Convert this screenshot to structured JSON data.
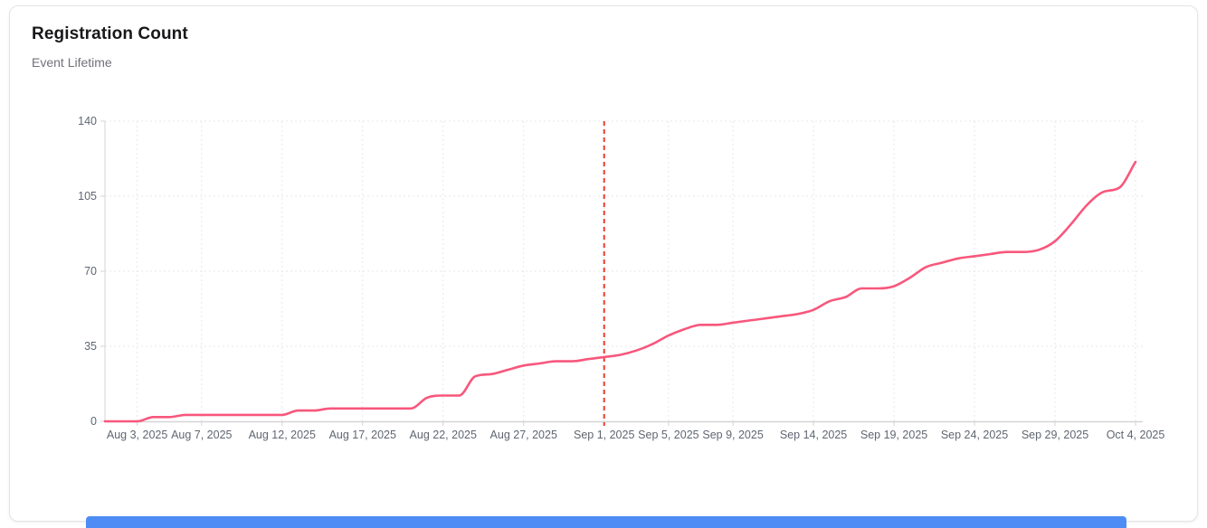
{
  "card": {
    "title": "Registration Count",
    "subtitle": "Event Lifetime"
  },
  "colors": {
    "line": "#f8577c",
    "reference_line": "#ee3b2e",
    "axis": "#d4d4d8",
    "grid": "#e7e7ee",
    "tick_label": "#5f6672",
    "scrollbar": "#4e8cf5",
    "card_border": "#e4e4e7"
  },
  "scrollbar": {
    "name": "horizontal-scrollbar"
  },
  "chart_data": {
    "type": "line",
    "title": "Registration Count",
    "subtitle": "Event Lifetime",
    "xlabel": "",
    "ylabel": "",
    "ylim": [
      0,
      140
    ],
    "y_ticks": [
      0,
      35,
      70,
      105,
      140
    ],
    "grid": "dotted",
    "legend": "none",
    "x_tick_labels": [
      "Aug 3, 2025",
      "Aug 7, 2025",
      "Aug 12, 2025",
      "Aug 17, 2025",
      "Aug 22, 2025",
      "Aug 27, 2025",
      "Sep 1, 2025",
      "Sep 5, 2025",
      "Sep 9, 2025",
      "Sep 14, 2025",
      "Sep 19, 2025",
      "Sep 24, 2025",
      "Sep 29, 2025",
      "Oct 4, 2025"
    ],
    "reference_line": {
      "x": "Sep 1, 2025",
      "style": "dashed",
      "color": "#ee3b2e"
    },
    "series": [
      {
        "name": "Registration Count",
        "color": "#f8577c",
        "x": [
          "Aug 1, 2025",
          "Aug 2, 2025",
          "Aug 3, 2025",
          "Aug 4, 2025",
          "Aug 5, 2025",
          "Aug 6, 2025",
          "Aug 7, 2025",
          "Aug 8, 2025",
          "Aug 9, 2025",
          "Aug 10, 2025",
          "Aug 11, 2025",
          "Aug 12, 2025",
          "Aug 13, 2025",
          "Aug 14, 2025",
          "Aug 15, 2025",
          "Aug 16, 2025",
          "Aug 17, 2025",
          "Aug 18, 2025",
          "Aug 19, 2025",
          "Aug 20, 2025",
          "Aug 21, 2025",
          "Aug 22, 2025",
          "Aug 23, 2025",
          "Aug 24, 2025",
          "Aug 25, 2025",
          "Aug 26, 2025",
          "Aug 27, 2025",
          "Aug 28, 2025",
          "Aug 29, 2025",
          "Aug 30, 2025",
          "Aug 31, 2025",
          "Sep 1, 2025",
          "Sep 2, 2025",
          "Sep 3, 2025",
          "Sep 4, 2025",
          "Sep 5, 2025",
          "Sep 6, 2025",
          "Sep 7, 2025",
          "Sep 8, 2025",
          "Sep 9, 2025",
          "Sep 10, 2025",
          "Sep 11, 2025",
          "Sep 12, 2025",
          "Sep 13, 2025",
          "Sep 14, 2025",
          "Sep 15, 2025",
          "Sep 16, 2025",
          "Sep 17, 2025",
          "Sep 18, 2025",
          "Sep 19, 2025",
          "Sep 20, 2025",
          "Sep 21, 2025",
          "Sep 22, 2025",
          "Sep 23, 2025",
          "Sep 24, 2025",
          "Sep 25, 2025",
          "Sep 26, 2025",
          "Sep 27, 2025",
          "Sep 28, 2025",
          "Sep 29, 2025",
          "Sep 30, 2025",
          "Oct 1, 2025",
          "Oct 2, 2025",
          "Oct 3, 2025",
          "Oct 4, 2025"
        ],
        "values": [
          0,
          0,
          0,
          2,
          2,
          3,
          3,
          3,
          3,
          3,
          3,
          3,
          5,
          5,
          6,
          6,
          6,
          6,
          6,
          6,
          11,
          12,
          12,
          21,
          22,
          24,
          26,
          27,
          28,
          28,
          29,
          30,
          31,
          33,
          36,
          40,
          43,
          45,
          45,
          46,
          47,
          48,
          49,
          50,
          52,
          56,
          58,
          62,
          62,
          63,
          67,
          72,
          74,
          76,
          77,
          78,
          79,
          79,
          80,
          84,
          92,
          101,
          107,
          109,
          121
        ]
      }
    ]
  }
}
